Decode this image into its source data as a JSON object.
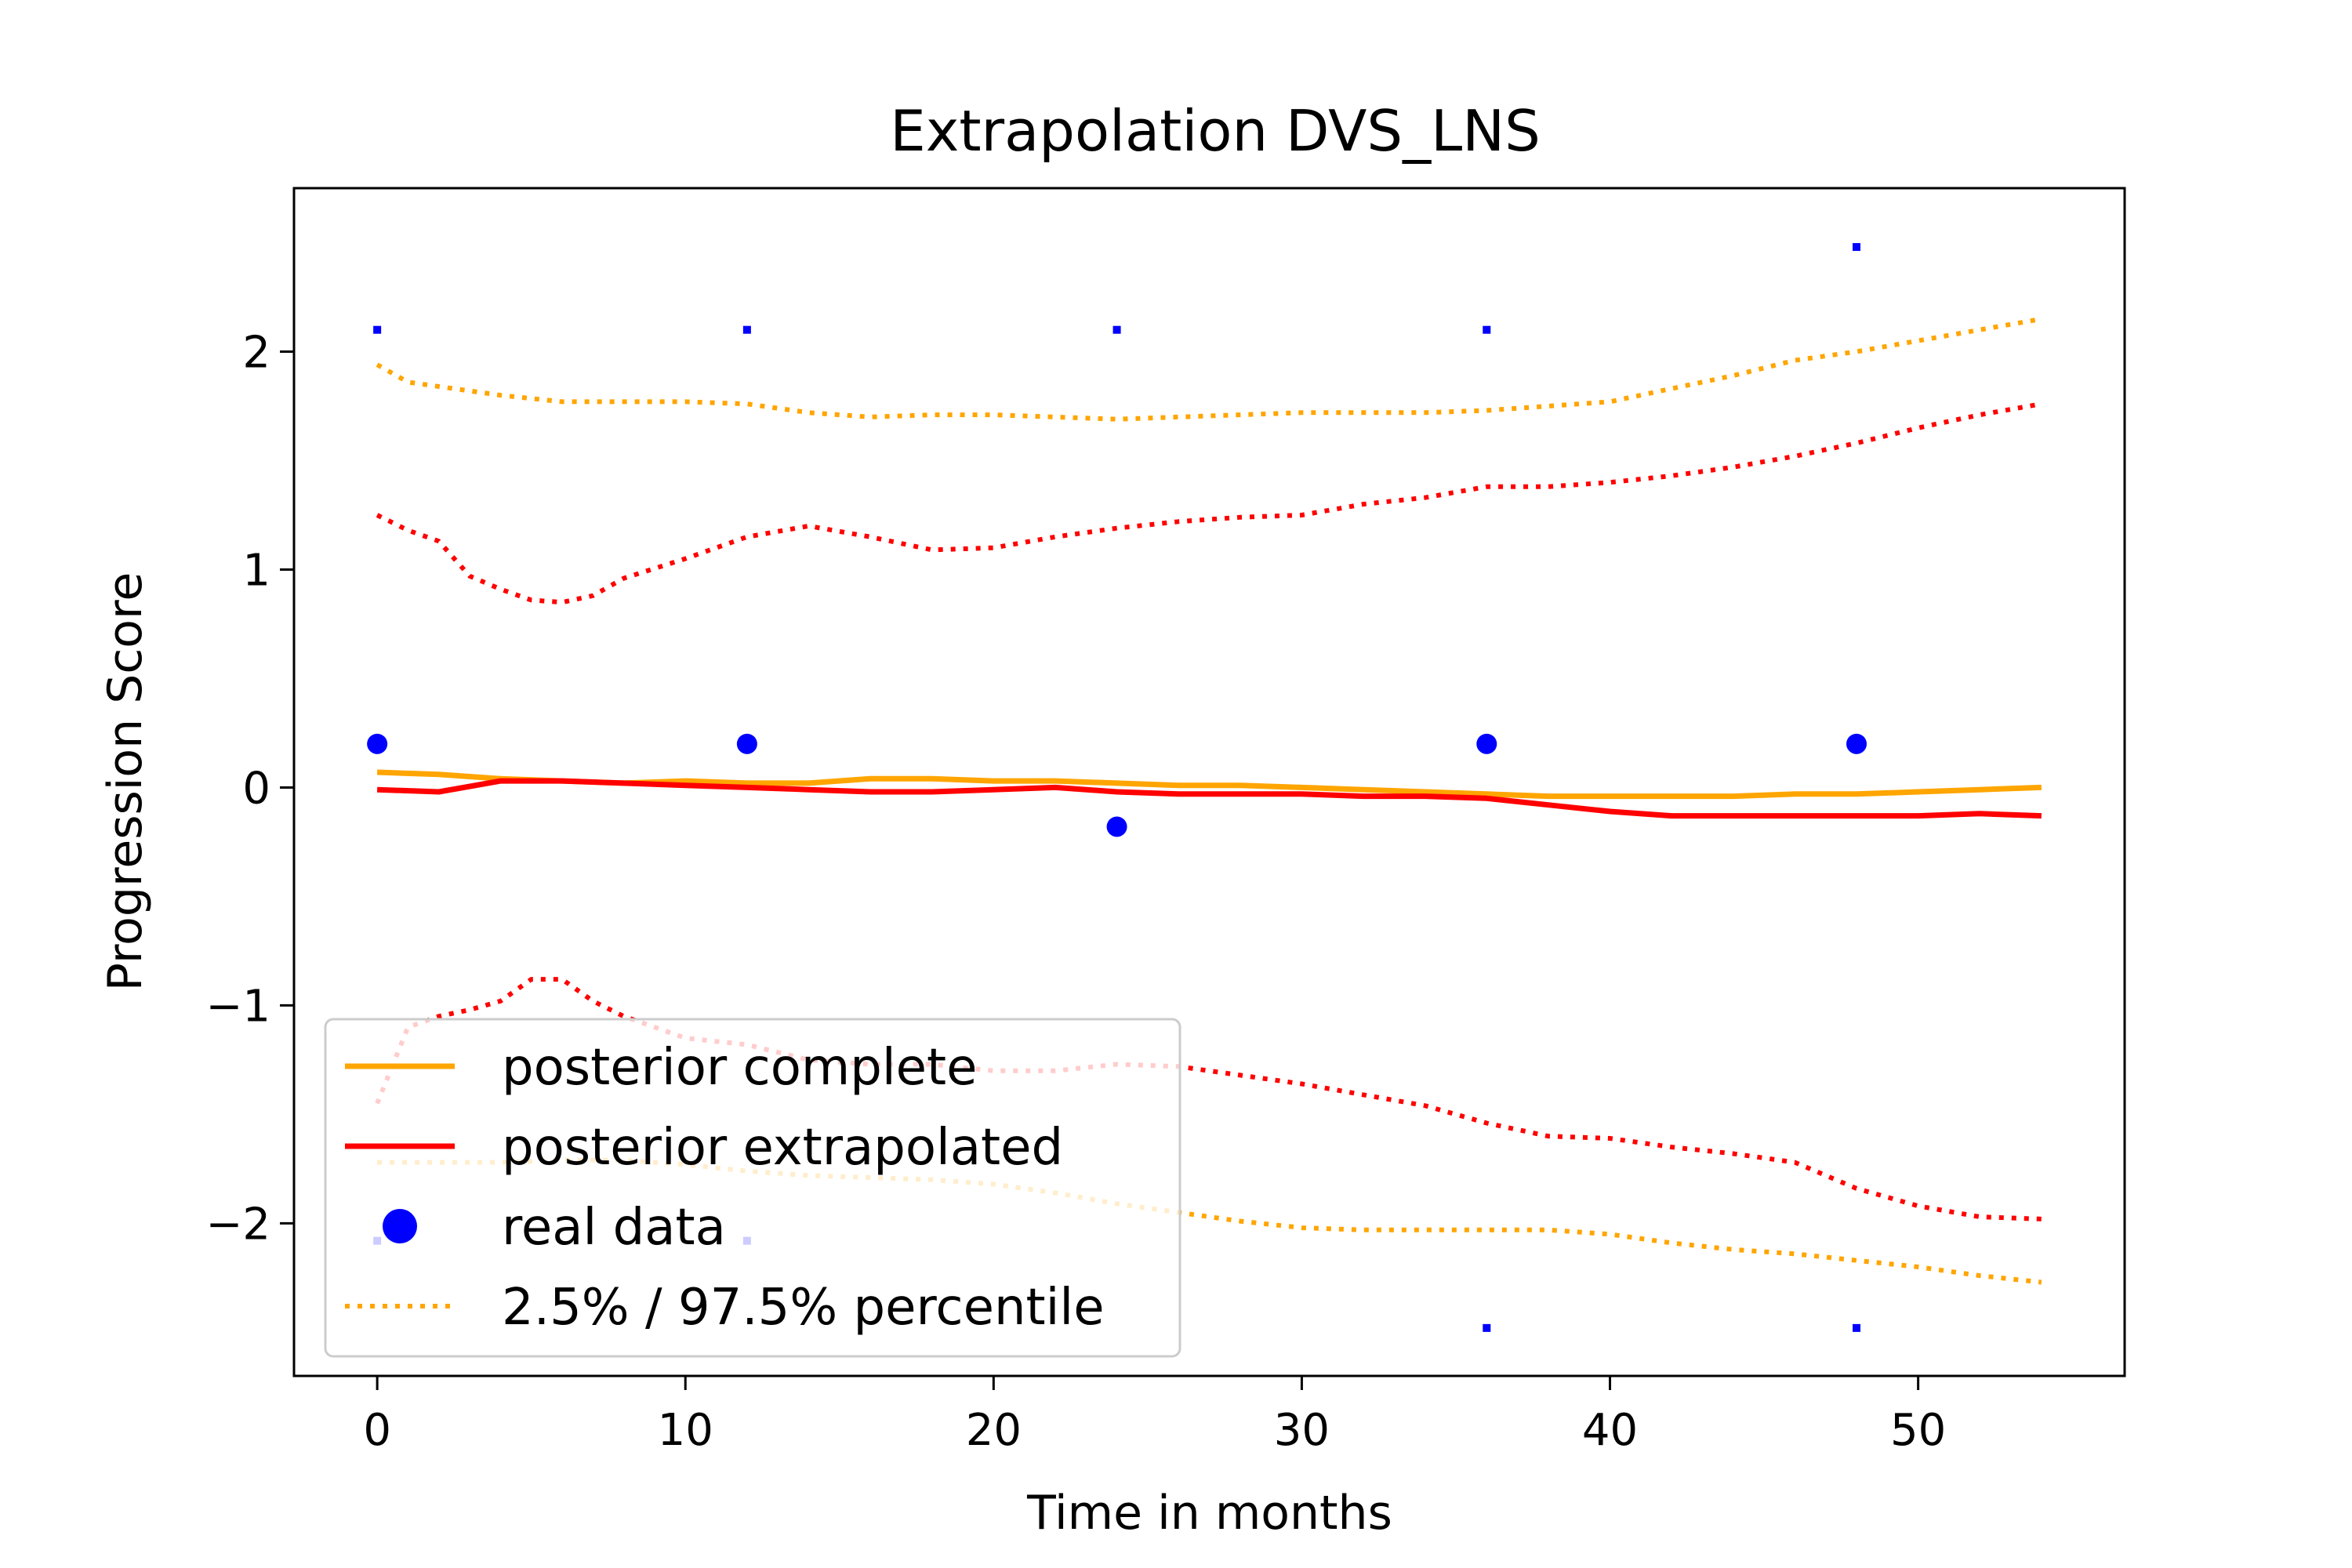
{
  "chart_data": {
    "type": "line",
    "title": "Extrapolation DVS_LNS",
    "xlabel": "Time in months",
    "ylabel": "Progression Score",
    "xlim": [
      -2.7,
      56.7
    ],
    "ylim": [
      -2.7,
      2.75
    ],
    "xticks": [
      0,
      10,
      20,
      30,
      40,
      50
    ],
    "yticks": [
      -2,
      -1,
      0,
      1,
      2
    ],
    "xtick_labels": [
      "0",
      "10",
      "20",
      "30",
      "40",
      "50"
    ],
    "ytick_labels": [
      "−2",
      "−1",
      "0",
      "1",
      "2"
    ],
    "grid": false,
    "legend_position": "lower-left",
    "colors": {
      "posterior_complete": "#ffa500",
      "posterior_extrapolated": "#ff0000",
      "real_data": "#0000ff"
    },
    "series": [
      {
        "name": "posterior complete",
        "style": "solid",
        "color": "#ffa500",
        "x": [
          0,
          2,
          4,
          6,
          8,
          10,
          12,
          14,
          16,
          18,
          20,
          22,
          24,
          26,
          28,
          30,
          32,
          34,
          36,
          38,
          40,
          42,
          44,
          46,
          48,
          50,
          52,
          54
        ],
        "y": [
          0.07,
          0.06,
          0.04,
          0.03,
          0.02,
          0.03,
          0.02,
          0.02,
          0.04,
          0.04,
          0.03,
          0.03,
          0.02,
          0.01,
          0.01,
          0.0,
          -0.01,
          -0.02,
          -0.03,
          -0.04,
          -0.04,
          -0.04,
          -0.04,
          -0.03,
          -0.03,
          -0.02,
          -0.01,
          0.0
        ]
      },
      {
        "name": "posterior extrapolated",
        "style": "solid",
        "color": "#ff0000",
        "x": [
          0,
          2,
          4,
          6,
          8,
          10,
          12,
          14,
          16,
          18,
          20,
          22,
          24,
          26,
          28,
          30,
          32,
          34,
          36,
          38,
          40,
          42,
          44,
          46,
          48,
          50,
          52,
          54
        ],
        "y": [
          -0.01,
          -0.02,
          0.03,
          0.03,
          0.02,
          0.01,
          0.0,
          -0.01,
          -0.02,
          -0.02,
          -0.01,
          0.0,
          -0.02,
          -0.03,
          -0.03,
          -0.03,
          -0.04,
          -0.04,
          -0.05,
          -0.08,
          -0.11,
          -0.13,
          -0.13,
          -0.13,
          -0.13,
          -0.13,
          -0.12,
          -0.13
        ]
      },
      {
        "name": "2.5% / 97.5% percentile",
        "style": "dotted",
        "color": "#ffa500",
        "x": [
          0,
          1,
          2,
          4,
          6,
          8,
          10,
          12,
          14,
          16,
          18,
          20,
          22,
          24,
          26,
          28,
          30,
          32,
          34,
          36,
          38,
          40,
          42,
          44,
          46,
          48,
          50,
          52,
          54
        ],
        "y": [
          1.94,
          1.86,
          1.84,
          1.8,
          1.77,
          1.77,
          1.77,
          1.76,
          1.72,
          1.7,
          1.71,
          1.71,
          1.7,
          1.69,
          1.7,
          1.71,
          1.72,
          1.72,
          1.72,
          1.73,
          1.75,
          1.77,
          1.83,
          1.89,
          1.96,
          2.0,
          2.05,
          2.1,
          2.15
        ]
      },
      {
        "name": "",
        "style": "dotted",
        "color": "#ffa500",
        "x": [
          0,
          2,
          4,
          6,
          8,
          10,
          12,
          14,
          16,
          18,
          20,
          22,
          24,
          26,
          28,
          30,
          32,
          34,
          36,
          38,
          40,
          42,
          44,
          46,
          48,
          50,
          52,
          54
        ],
        "y": [
          -1.72,
          -1.72,
          -1.72,
          -1.71,
          -1.71,
          -1.73,
          -1.76,
          -1.78,
          -1.79,
          -1.8,
          -1.82,
          -1.86,
          -1.91,
          -1.95,
          -1.99,
          -2.02,
          -2.03,
          -2.03,
          -2.03,
          -2.03,
          -2.05,
          -2.09,
          -2.12,
          -2.14,
          -2.17,
          -2.2,
          -2.24,
          -2.27
        ]
      },
      {
        "name": "",
        "style": "dotted",
        "color": "#ff0000",
        "x": [
          0,
          1,
          2,
          3,
          4,
          5,
          6,
          7,
          8,
          10,
          12,
          14,
          16,
          18,
          20,
          22,
          24,
          26,
          28,
          30,
          32,
          34,
          36,
          38,
          40,
          42,
          44,
          46,
          48,
          50,
          52,
          54
        ],
        "y": [
          1.25,
          1.18,
          1.13,
          0.97,
          0.91,
          0.86,
          0.85,
          0.88,
          0.96,
          1.05,
          1.15,
          1.2,
          1.15,
          1.09,
          1.1,
          1.15,
          1.19,
          1.22,
          1.24,
          1.25,
          1.3,
          1.33,
          1.38,
          1.38,
          1.4,
          1.43,
          1.47,
          1.52,
          1.58,
          1.65,
          1.71,
          1.76
        ]
      },
      {
        "name": "",
        "style": "dotted",
        "color": "#ff0000",
        "x": [
          0,
          1,
          2,
          3,
          4,
          5,
          6,
          7,
          8,
          10,
          12,
          14,
          16,
          18,
          20,
          22,
          24,
          26,
          28,
          30,
          32,
          34,
          36,
          38,
          40,
          42,
          44,
          46,
          48,
          50,
          52,
          54
        ],
        "y": [
          -1.45,
          -1.1,
          -1.05,
          -1.02,
          -0.98,
          -0.88,
          -0.88,
          -0.98,
          -1.05,
          -1.15,
          -1.18,
          -1.25,
          -1.27,
          -1.27,
          -1.3,
          -1.3,
          -1.27,
          -1.28,
          -1.32,
          -1.36,
          -1.41,
          -1.46,
          -1.54,
          -1.6,
          -1.61,
          -1.65,
          -1.68,
          -1.72,
          -1.84,
          -1.92,
          -1.97,
          -1.98
        ]
      }
    ],
    "points": {
      "name": "real data",
      "color": "#0000ff",
      "large": [
        {
          "x": 0,
          "y": 0.2
        },
        {
          "x": 12,
          "y": 0.2
        },
        {
          "x": 24,
          "y": -0.18
        },
        {
          "x": 36,
          "y": 0.2
        },
        {
          "x": 48,
          "y": 0.2
        }
      ],
      "small": [
        {
          "x": 0,
          "y": 2.1
        },
        {
          "x": 12,
          "y": 2.1
        },
        {
          "x": 24,
          "y": 2.1
        },
        {
          "x": 36,
          "y": 2.1
        },
        {
          "x": 48,
          "y": 2.48
        },
        {
          "x": 0,
          "y": -2.08
        },
        {
          "x": 12,
          "y": -2.08
        },
        {
          "x": 36,
          "y": -2.48
        },
        {
          "x": 48,
          "y": -2.48
        }
      ]
    },
    "legend": [
      {
        "label": "posterior complete",
        "kind": "line",
        "style": "solid",
        "color": "#ffa500"
      },
      {
        "label": "posterior extrapolated",
        "kind": "line",
        "style": "solid",
        "color": "#ff0000"
      },
      {
        "label": "real data",
        "kind": "marker",
        "color": "#0000ff"
      },
      {
        "label": "2.5% / 97.5% percentile",
        "kind": "line",
        "style": "dotted",
        "color": "#ffa500"
      }
    ]
  }
}
